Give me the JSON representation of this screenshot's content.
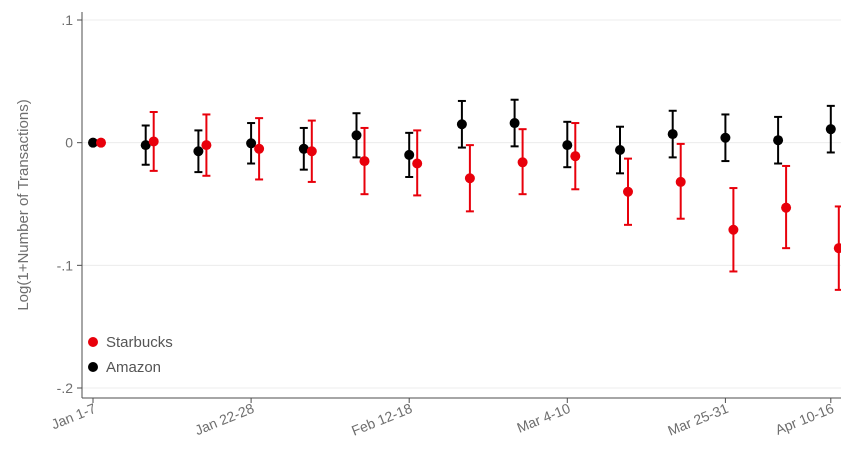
{
  "chart_data": {
    "type": "scatter",
    "title": "",
    "xlabel": "",
    "ylabel": "Log(1+Number of Transactions)",
    "ylim": [
      -0.2,
      0.1
    ],
    "yticks": [
      {
        "value": 0.1,
        "label": ".1"
      },
      {
        "value": 0.0,
        "label": "0"
      },
      {
        "value": -0.1,
        "label": "-.1"
      },
      {
        "value": -0.2,
        "label": "-.2"
      }
    ],
    "xticks": [
      {
        "index": 0,
        "label": "Jan 1-7"
      },
      {
        "index": 3,
        "label": "Jan 22-28"
      },
      {
        "index": 6,
        "label": "Feb 12-18"
      },
      {
        "index": 9,
        "label": "Mar 4-10"
      },
      {
        "index": 12,
        "label": "Mar 25-31"
      },
      {
        "index": 14,
        "label": "Apr 10-16"
      }
    ],
    "x": [
      0,
      1,
      2,
      3,
      4,
      5,
      6,
      7,
      8,
      9,
      10,
      11,
      12,
      13,
      14
    ],
    "grid": true,
    "legend_position": "bottom-left",
    "series": [
      {
        "name": "Amazon",
        "color": "#000000",
        "values": [
          0.0,
          -0.002,
          -0.007,
          -0.0005,
          -0.005,
          0.006,
          -0.01,
          0.015,
          0.016,
          -0.002,
          -0.006,
          0.007,
          0.004,
          0.002,
          0.011
        ],
        "lower": [
          0.0,
          -0.018,
          -0.024,
          -0.017,
          -0.022,
          -0.012,
          -0.028,
          -0.004,
          -0.003,
          -0.02,
          -0.025,
          -0.012,
          -0.015,
          -0.017,
          -0.008
        ],
        "upper": [
          0.0,
          0.014,
          0.01,
          0.016,
          0.012,
          0.024,
          0.008,
          0.034,
          0.035,
          0.017,
          0.013,
          0.026,
          0.023,
          0.021,
          0.03
        ]
      },
      {
        "name": "Starbucks",
        "color": "#e8000b",
        "values": [
          0.0,
          0.001,
          -0.002,
          -0.005,
          -0.007,
          -0.015,
          -0.017,
          -0.029,
          -0.016,
          -0.011,
          -0.04,
          -0.032,
          -0.071,
          -0.053,
          -0.086
        ],
        "lower": [
          0.0,
          -0.023,
          -0.027,
          -0.03,
          -0.032,
          -0.042,
          -0.043,
          -0.056,
          -0.042,
          -0.038,
          -0.067,
          -0.062,
          -0.105,
          -0.086,
          -0.12
        ],
        "upper": [
          0.0,
          0.025,
          0.023,
          0.02,
          0.018,
          0.012,
          0.01,
          -0.002,
          0.011,
          0.016,
          -0.013,
          -0.001,
          -0.037,
          -0.019,
          -0.052
        ]
      }
    ]
  }
}
